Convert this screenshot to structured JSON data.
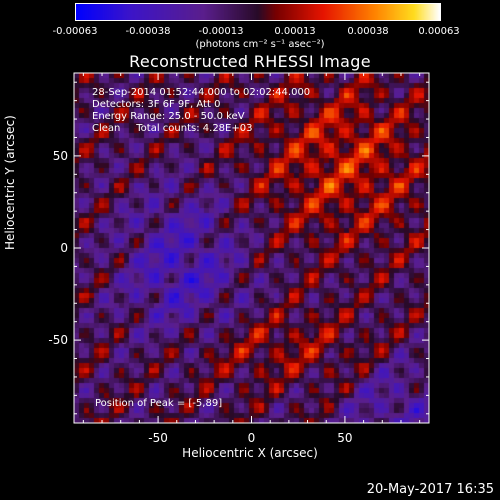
{
  "colorbar": {
    "ticks": [
      "-0.00063",
      "-0.00038",
      "-0.00013",
      "0.00013",
      "0.00038",
      "0.00063"
    ],
    "units": "(photons cm⁻² s⁻¹ asec⁻²)"
  },
  "title": "Reconstructed RHESSI Image",
  "annotations": {
    "time": "28-Sep-2014 01:52:44.000 to 02:02:44.000",
    "detectors": "Detectors: 3F 6F 9F, Att 0",
    "energy": "Energy Range: 25.0 - 50.0 keV",
    "clean": "Clean     Total counts: 4.28E+03",
    "peak": "Position of Peak = [-5,89]"
  },
  "footer_date": "20-May-2017 16:35",
  "chart_data": {
    "type": "heatmap",
    "title": "Reconstructed RHESSI Image",
    "xlabel": "Heliocentric X (arcsec)",
    "ylabel": "Heliocentric Y (arcsec)",
    "xlim": [
      -95,
      95
    ],
    "ylim": [
      -95,
      95
    ],
    "x_ticks": [
      "-50",
      "0",
      "50"
    ],
    "y_ticks": [
      "50",
      "0",
      "-50"
    ],
    "x_tick_values": [
      -50,
      0,
      50
    ],
    "y_tick_values": [
      50,
      0,
      -50
    ],
    "colorbar_range": [
      -0.00063,
      0.00063
    ],
    "colormap": "blue-purple-red-yellow-white",
    "peak_position": [
      -5,
      89
    ]
  }
}
